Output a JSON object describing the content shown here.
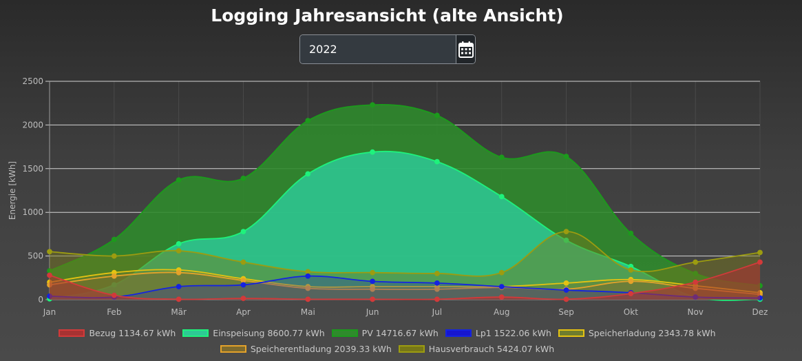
{
  "page_title": "Logging Jahresansicht (alte Ansicht)",
  "date_picker": {
    "value": "2022",
    "icon": "calendar-icon"
  },
  "chart_data": {
    "type": "area",
    "categories": [
      "Jan",
      "Feb",
      "Mär",
      "Apr",
      "Mai",
      "Jun",
      "Jul",
      "Aug",
      "Sep",
      "Okt",
      "Nov",
      "Dez"
    ],
    "ylabel": "Energie [kWh]",
    "xlabel": "",
    "ylim": [
      0,
      2500
    ],
    "yticks": [
      0,
      500,
      1000,
      1500,
      2000,
      2500
    ],
    "grid": true,
    "legend_position": "bottom",
    "series": [
      {
        "name": "Bezug",
        "total_label": "1134.67 kWh",
        "color": "#d23a3a",
        "fill": "#a83232",
        "values": [
          280,
          50,
          5,
          15,
          5,
          5,
          5,
          30,
          5,
          70,
          200,
          430
        ]
      },
      {
        "name": "Einspeisung",
        "total_label": "8600.77 kWh",
        "color": "#1ef27c",
        "fill": "#2ec995",
        "values": [
          10,
          170,
          640,
          780,
          1440,
          1690,
          1580,
          1180,
          680,
          380,
          30,
          5
        ]
      },
      {
        "name": "PV",
        "total_label": "14716.67 kWh",
        "color": "#1c9a1c",
        "fill": "#2f8a2c",
        "values": [
          330,
          690,
          1370,
          1390,
          2050,
          2230,
          2110,
          1630,
          1640,
          760,
          300,
          160
        ]
      },
      {
        "name": "Lp1",
        "total_label": "1522.06 kWh",
        "color": "#1423e0",
        "fill": "#1616cf",
        "values": [
          40,
          30,
          150,
          170,
          270,
          210,
          190,
          150,
          110,
          80,
          30,
          20
        ]
      },
      {
        "name": "Speicherladung",
        "total_label": "2343.78 kWh",
        "color": "#e5c312",
        "fill": "#6f7d2e",
        "values": [
          200,
          310,
          340,
          240,
          150,
          150,
          150,
          150,
          190,
          230,
          160,
          80
        ]
      },
      {
        "name": "Speicherentladung",
        "total_label": "2039.33 kWh",
        "color": "#e4a22a",
        "fill": "#7d6a2e",
        "values": [
          170,
          270,
          310,
          220,
          130,
          120,
          120,
          140,
          120,
          210,
          130,
          60
        ]
      },
      {
        "name": "Hausverbrauch",
        "total_label": "5424.07 kWh",
        "color": "#9c9c10",
        "fill": "#777718",
        "values": [
          550,
          500,
          560,
          430,
          320,
          310,
          300,
          310,
          780,
          340,
          430,
          540
        ]
      }
    ]
  }
}
